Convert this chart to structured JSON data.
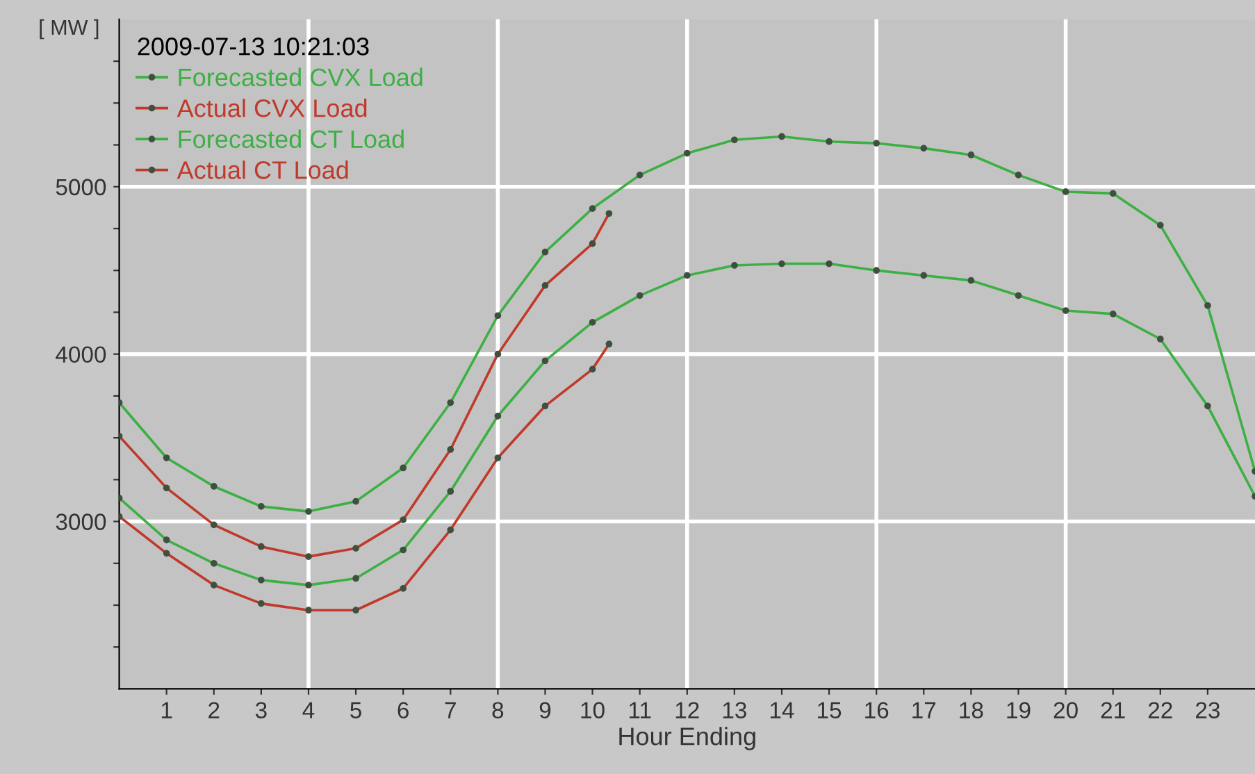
{
  "chart_data": {
    "type": "line",
    "xlabel": "Hour Ending",
    "ylabel": "[ MW ]",
    "legend_title": "2009-07-13 10:21:03",
    "legend": "top left",
    "marker": "circle",
    "line_style": "solid",
    "grid": false,
    "xlim": [
      0,
      24
    ],
    "xticks": [
      1,
      2,
      3,
      4,
      5,
      6,
      7,
      8,
      9,
      10,
      11,
      12,
      13,
      14,
      15,
      16,
      17,
      18,
      19,
      20,
      21,
      22,
      23
    ],
    "ylim": [
      2000,
      6000
    ],
    "yticks": [
      {
        "value": 2250,
        "label": null
      },
      {
        "value": 2500,
        "label": null
      },
      {
        "value": 2750,
        "label": null
      },
      3000,
      {
        "value": 3250,
        "label": null
      },
      {
        "value": 3500,
        "label": null
      },
      {
        "value": 3750,
        "label": null
      },
      4000,
      {
        "value": 4250,
        "label": null
      },
      {
        "value": 4500,
        "label": null
      },
      {
        "value": 4750,
        "label": null
      },
      5000,
      {
        "value": 5250,
        "label": null
      },
      {
        "value": 5500,
        "label": null
      },
      {
        "value": 5750,
        "label": null
      }
    ],
    "ref_lines": [
      {
        "axis": "x",
        "value": 4,
        "color": "#ffffff"
      },
      {
        "axis": "x",
        "value": 8,
        "color": "#ffffff"
      },
      {
        "axis": "x",
        "value": 12,
        "color": "#ffffff"
      },
      {
        "axis": "x",
        "value": 16,
        "color": "#ffffff"
      },
      {
        "axis": "x",
        "value": 20,
        "color": "#ffffff"
      },
      {
        "axis": "y",
        "value": 3000,
        "color": "#ffffff"
      },
      {
        "axis": "y",
        "value": 4000,
        "color": "#ffffff"
      },
      {
        "axis": "y",
        "value": 5000,
        "color": "#ffffff"
      }
    ],
    "series": [
      {
        "name": "Forecasted CVX Load",
        "color": "#3cb043",
        "x": [
          0,
          1,
          2,
          3,
          4,
          5,
          6,
          7,
          8,
          9,
          10,
          11,
          12,
          13,
          14,
          15,
          16,
          17,
          18,
          19,
          20,
          21,
          22,
          23,
          24
        ],
        "values": [
          3710,
          3380,
          3210,
          3090,
          3060,
          3120,
          3320,
          3710,
          4230,
          4610,
          4870,
          5070,
          5200,
          5280,
          5300,
          5270,
          5260,
          5230,
          5190,
          5070,
          4970,
          4960,
          4770,
          4290,
          3300
        ]
      },
      {
        "name": "Actual CVX Load",
        "color": "#c0392b",
        "x": [
          0,
          1,
          2,
          3,
          4,
          5,
          6,
          7,
          8,
          9,
          10,
          10.35
        ],
        "values": [
          3510,
          3200,
          2980,
          2850,
          2790,
          2840,
          3010,
          3430,
          4000,
          4410,
          4660,
          4840
        ]
      },
      {
        "name": "Forecasted CT Load",
        "color": "#3cb043",
        "x": [
          0,
          1,
          2,
          3,
          4,
          5,
          6,
          7,
          8,
          9,
          10,
          11,
          12,
          13,
          14,
          15,
          16,
          17,
          18,
          19,
          20,
          21,
          22,
          23,
          24
        ],
        "values": [
          3140,
          2890,
          2750,
          2650,
          2620,
          2660,
          2830,
          3180,
          3630,
          3960,
          4190,
          4350,
          4470,
          4530,
          4540,
          4540,
          4500,
          4470,
          4440,
          4350,
          4260,
          4240,
          4090,
          3690,
          3150
        ]
      },
      {
        "name": "Actual CT Load",
        "color": "#c0392b",
        "x": [
          0,
          1,
          2,
          3,
          4,
          5,
          6,
          7,
          8,
          9,
          10,
          10.35
        ],
        "values": [
          3030,
          2810,
          2620,
          2510,
          2470,
          2470,
          2600,
          2950,
          3380,
          3690,
          3910,
          4060
        ]
      }
    ]
  }
}
